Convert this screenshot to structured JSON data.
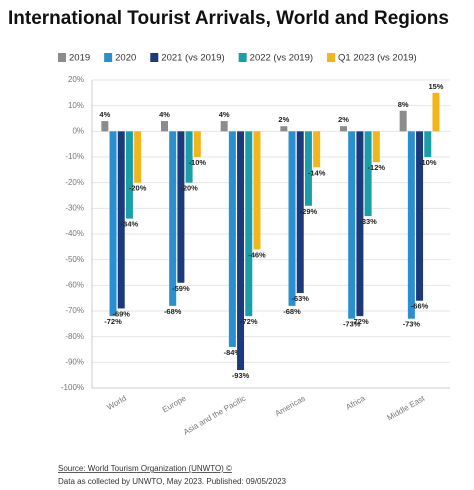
{
  "chart_data": {
    "type": "bar",
    "title": "International Tourist Arrivals, World and Regions",
    "categories": [
      "World",
      "Europe",
      "Asia and the Pacific",
      "Americas",
      "Africa",
      "Middle East"
    ],
    "series": [
      {
        "name": "2019",
        "color": "#8c8c8c",
        "values": [
          4,
          4,
          4,
          2,
          2,
          8
        ],
        "value_labels": [
          "4%",
          "4%",
          "4%",
          "2%",
          "2%",
          "8%"
        ]
      },
      {
        "name": "2020",
        "color": "#2a8fcf",
        "values": [
          -72,
          -68,
          -84,
          -68,
          -73,
          -73
        ],
        "value_labels": [
          "-72%",
          "-68%",
          "-84%",
          "-68%",
          "-73%",
          "-73%"
        ]
      },
      {
        "name": "2021 (vs 2019)",
        "color": "#1c3a7a",
        "values": [
          -69,
          -59,
          -93,
          -63,
          -72,
          -66
        ],
        "value_labels": [
          "-69%",
          "-59%",
          "-93%",
          "-63%",
          "-72%",
          "-66%"
        ]
      },
      {
        "name": "2022 (vs 2019)",
        "color": "#1a9fa8",
        "values": [
          -34,
          -20,
          -72,
          -29,
          -33,
          -10
        ],
        "value_labels": [
          "-34%",
          "-20%",
          "-72%",
          "-29%",
          "-33%",
          "-10%"
        ]
      },
      {
        "name": "Q1 2023 (vs 2019)",
        "color": "#f2b51c",
        "values": [
          -20,
          -10,
          -46,
          -14,
          -12,
          15
        ],
        "value_labels": [
          "-20%",
          "-10%",
          "-46%",
          "-14%",
          "-12%",
          "15%"
        ]
      }
    ],
    "ylim": [
      -100,
      20
    ],
    "yticks": [
      {
        "value": -100,
        "label": "-100%"
      },
      {
        "value": -90,
        "label": "-90%"
      },
      {
        "value": -80,
        "label": "-80%"
      },
      {
        "value": -70,
        "label": "-70%"
      },
      {
        "value": -60,
        "label": "-60%"
      },
      {
        "value": -50,
        "label": "-50%"
      },
      {
        "value": -40,
        "label": "-40%"
      },
      {
        "value": -30,
        "label": "-30%"
      },
      {
        "value": -20,
        "label": "-20%"
      },
      {
        "value": -10,
        "label": "-10%"
      },
      {
        "value": 0,
        "label": "0%"
      },
      {
        "value": 10,
        "label": "10%"
      },
      {
        "value": 20,
        "label": "20%"
      }
    ],
    "grid": true,
    "source": "Source: World Tourism Organization (UNWTO) ©",
    "note": "Data as collected by UNWTO, May 2023. Published: 09/05/2023"
  }
}
